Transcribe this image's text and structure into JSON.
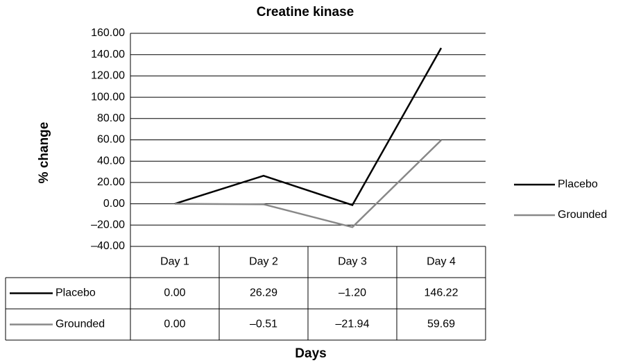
{
  "chart_data": {
    "type": "line",
    "title": "Creatine kinase",
    "x_label": "Days",
    "y_label": "% change",
    "categories": [
      "Day 1",
      "Day 2",
      "Day 3",
      "Day 4"
    ],
    "series": [
      {
        "name": "Placebo",
        "color": "#000000",
        "values": [
          0,
          26.29,
          -1.2,
          146.22
        ],
        "value_labels": [
          "0.00",
          "26.29",
          "–1.20",
          "146.22"
        ]
      },
      {
        "name": "Grounded",
        "color": "#888888",
        "values": [
          0,
          -0.51,
          -21.94,
          59.69
        ],
        "value_labels": [
          "0.00",
          "–0.51",
          "–21.94",
          "59.69"
        ]
      }
    ],
    "ylim": [
      -40,
      160
    ],
    "yticks": [
      {
        "value": -40,
        "label": "–40.00"
      },
      {
        "value": -20,
        "label": "–20.00"
      },
      {
        "value": 0,
        "label": "0.00"
      },
      {
        "value": 20,
        "label": "20.00"
      },
      {
        "value": 40,
        "label": "40.00"
      },
      {
        "value": 60,
        "label": "60.00"
      },
      {
        "value": 80,
        "label": "80.00"
      },
      {
        "value": 100,
        "label": "100.00"
      },
      {
        "value": 120,
        "label": "120.00"
      },
      {
        "value": 140,
        "label": "140.00"
      },
      {
        "value": 160,
        "label": "160.00"
      }
    ],
    "grid": true,
    "legend": "right",
    "data_table": true
  }
}
